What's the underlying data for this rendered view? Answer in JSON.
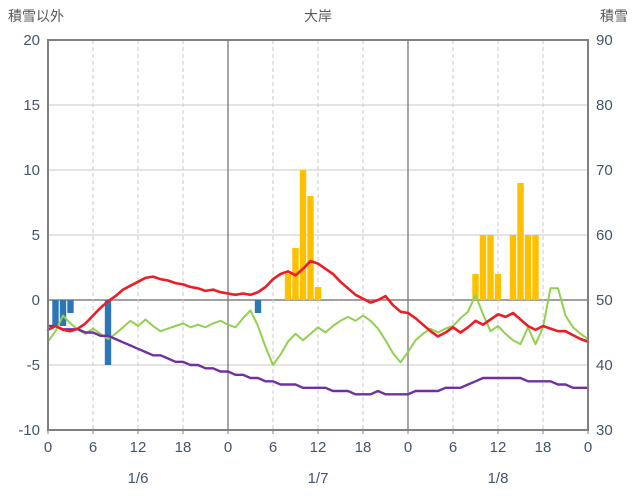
{
  "header": {
    "left_label": "積雪以外",
    "title": "大岸",
    "right_label": "積雪"
  },
  "colors": {
    "red": "#ee1c25",
    "green": "#92d050",
    "purple": "#7030a0",
    "orange": "#ffc000",
    "blue": "#2e75b6",
    "grid": "#c9c9c9",
    "day_grid": "#7f7f7f",
    "frame": "#808080",
    "zero_line": "#808080",
    "tick_text": "#44546a",
    "header_text": "#595959"
  },
  "chart_data": {
    "type": "line+bar",
    "title": "大岸",
    "x_unit": "hour",
    "x_range_hours": [
      0,
      72
    ],
    "left_axis": {
      "label": "積雪以外",
      "min": -10,
      "max": 20,
      "ticks": [
        20,
        15,
        10,
        5,
        0,
        -5,
        -10
      ]
    },
    "right_axis": {
      "label": "積雪",
      "min": 30,
      "max": 90,
      "ticks": [
        90,
        80,
        70,
        60,
        50,
        40,
        30
      ]
    },
    "x_ticks": {
      "hours": [
        0,
        6,
        12,
        18,
        24,
        30,
        36,
        42,
        48,
        54,
        60,
        66,
        72
      ],
      "labels": [
        "0",
        "6",
        "12",
        "18",
        "0",
        "6",
        "12",
        "18",
        "0",
        "6",
        "12",
        "18",
        "0"
      ]
    },
    "day_labels": [
      {
        "label": "1/6",
        "hour": 12
      },
      {
        "label": "1/7",
        "hour": 36
      },
      {
        "label": "1/8",
        "hour": 60
      }
    ],
    "series": [
      {
        "name": "orange-bars",
        "type": "bar",
        "axis": "left",
        "color_key": "orange",
        "values": [
          0,
          0,
          0,
          0,
          0,
          0,
          0,
          0,
          0,
          0,
          0,
          0,
          0,
          0,
          0,
          0,
          0,
          0,
          0,
          0,
          0,
          0,
          0,
          0,
          0,
          0,
          0,
          0,
          0,
          0,
          0,
          0,
          2,
          4,
          10,
          8,
          1,
          0,
          0,
          0,
          0,
          0,
          0,
          0,
          0,
          0,
          0,
          0,
          0,
          0,
          0,
          0,
          0,
          0,
          0,
          0,
          0,
          2,
          5,
          5,
          2,
          0,
          5,
          9,
          5,
          5,
          0,
          0,
          0,
          0,
          0,
          0,
          0
        ]
      },
      {
        "name": "blue-bars",
        "type": "bar",
        "axis": "left",
        "color_key": "blue",
        "values": [
          0,
          -2,
          -2,
          -1,
          0,
          0,
          0,
          0,
          -5,
          0,
          0,
          0,
          0,
          0,
          0,
          0,
          0,
          0,
          0,
          0,
          0,
          0,
          0,
          0,
          0,
          0,
          0,
          0,
          -1,
          0,
          0,
          0,
          0,
          0,
          0,
          0,
          0,
          0,
          0,
          0,
          0,
          0,
          0,
          0,
          0,
          0,
          0,
          0,
          0,
          0,
          0,
          0,
          0,
          0,
          0,
          0,
          0,
          0,
          0,
          0,
          0,
          0,
          0,
          0,
          0,
          0,
          0,
          0,
          0,
          0,
          0,
          0,
          0
        ]
      },
      {
        "name": "green-line",
        "type": "line",
        "axis": "left",
        "color_key": "green",
        "width": 2,
        "values": [
          -3.2,
          -2.4,
          -1.2,
          -1.8,
          -2.3,
          -2.6,
          -2.2,
          -2.6,
          -3.0,
          -2.6,
          -2.1,
          -1.6,
          -2.0,
          -1.5,
          -2.0,
          -2.4,
          -2.2,
          -2.0,
          -1.8,
          -2.1,
          -1.9,
          -2.1,
          -1.8,
          -1.6,
          -1.9,
          -2.1,
          -1.4,
          -0.8,
          -2.0,
          -3.6,
          -5.0,
          -4.2,
          -3.2,
          -2.6,
          -3.1,
          -2.6,
          -2.1,
          -2.5,
          -2.0,
          -1.6,
          -1.3,
          -1.6,
          -1.2,
          -1.6,
          -2.2,
          -3.1,
          -4.1,
          -4.8,
          -4.0,
          -3.1,
          -2.6,
          -2.2,
          -2.5,
          -2.2,
          -2.0,
          -1.4,
          -0.9,
          0.4,
          -1.1,
          -2.4,
          -2.0,
          -2.6,
          -3.1,
          -3.4,
          -2.1,
          -3.4,
          -2.1,
          0.9,
          0.9,
          -1.2,
          -2.1,
          -2.6,
          -3.0
        ]
      },
      {
        "name": "purple-line",
        "type": "line",
        "axis": "right",
        "color_key": "purple",
        "width": 2.4,
        "values": [
          46,
          46,
          45.5,
          45.5,
          45.5,
          45,
          45,
          44.5,
          44.5,
          44,
          43.5,
          43,
          42.5,
          42,
          41.5,
          41.5,
          41,
          40.5,
          40.5,
          40,
          40,
          39.5,
          39.5,
          39,
          39,
          38.5,
          38.5,
          38,
          38,
          37.5,
          37.5,
          37,
          37,
          37,
          36.5,
          36.5,
          36.5,
          36.5,
          36,
          36,
          36,
          35.5,
          35.5,
          35.5,
          36,
          35.5,
          35.5,
          35.5,
          35.5,
          36,
          36,
          36,
          36,
          36.5,
          36.5,
          36.5,
          37,
          37.5,
          38,
          38,
          38,
          38,
          38,
          38,
          37.5,
          37.5,
          37.5,
          37.5,
          37,
          37,
          36.5,
          36.5,
          36.5
        ]
      },
      {
        "name": "red-line",
        "type": "line",
        "axis": "left",
        "color_key": "red",
        "width": 2.6,
        "values": [
          -2.3,
          -2.0,
          -2.3,
          -2.4,
          -2.2,
          -1.8,
          -1.2,
          -0.6,
          -0.1,
          0.3,
          0.8,
          1.1,
          1.4,
          1.7,
          1.8,
          1.6,
          1.5,
          1.3,
          1.2,
          1.0,
          0.9,
          0.7,
          0.8,
          0.6,
          0.5,
          0.4,
          0.5,
          0.4,
          0.6,
          1.0,
          1.6,
          2.0,
          2.2,
          1.9,
          2.4,
          3.0,
          2.8,
          2.4,
          2.0,
          1.4,
          0.9,
          0.4,
          0.1,
          -0.2,
          0.0,
          0.3,
          -0.4,
          -0.9,
          -1.0,
          -1.4,
          -1.9,
          -2.4,
          -2.8,
          -2.5,
          -2.1,
          -2.5,
          -2.1,
          -1.6,
          -1.9,
          -1.5,
          -1.1,
          -1.3,
          -1.0,
          -1.5,
          -2.0,
          -2.3,
          -2.0,
          -2.2,
          -2.4,
          -2.4,
          -2.7,
          -3.0,
          -3.2
        ]
      }
    ]
  }
}
